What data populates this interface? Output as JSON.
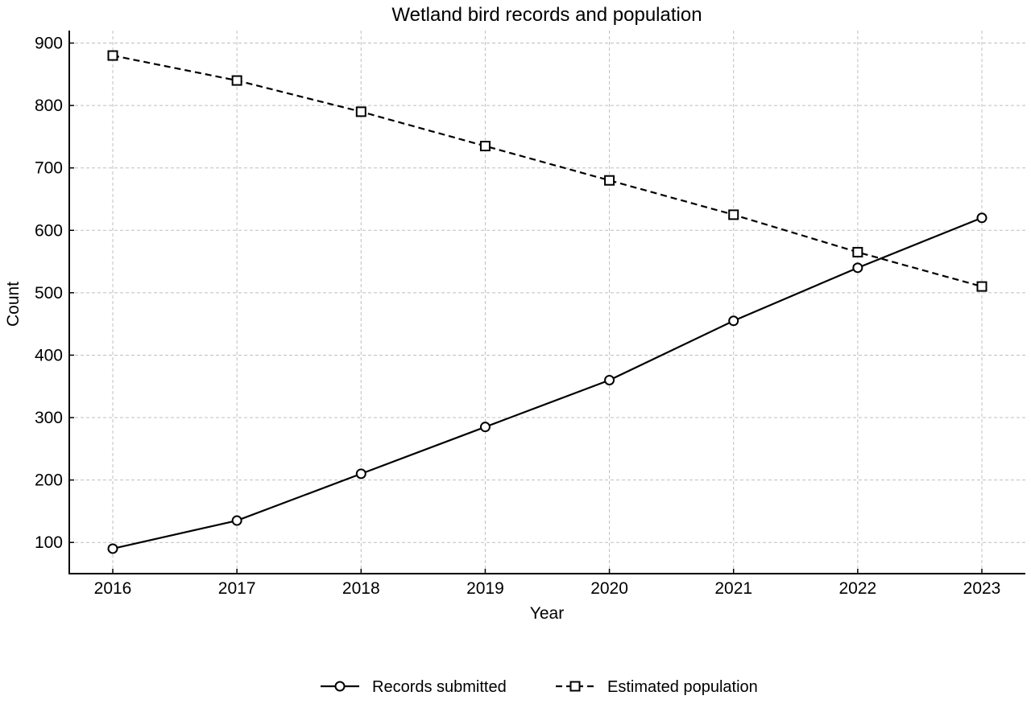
{
  "chart_data": {
    "type": "line",
    "title": "Wetland bird records and population",
    "xlabel": "Year",
    "ylabel": "Count",
    "x": [
      "2016",
      "2017",
      "2018",
      "2019",
      "2020",
      "2021",
      "2022",
      "2023"
    ],
    "yticks": [
      100,
      200,
      300,
      400,
      500,
      600,
      700,
      800,
      900
    ],
    "ylim": [
      50,
      920
    ],
    "grid": true,
    "legend_position": "bottom-center",
    "series": [
      {
        "name": "Records submitted",
        "style": "solid",
        "marker": "circle",
        "color": "#000000",
        "values": [
          90,
          135,
          210,
          285,
          360,
          455,
          540,
          620
        ]
      },
      {
        "name": "Estimated population",
        "style": "dashed",
        "marker": "square",
        "color": "#000000",
        "values": [
          880,
          840,
          790,
          735,
          680,
          625,
          565,
          510
        ]
      }
    ]
  }
}
